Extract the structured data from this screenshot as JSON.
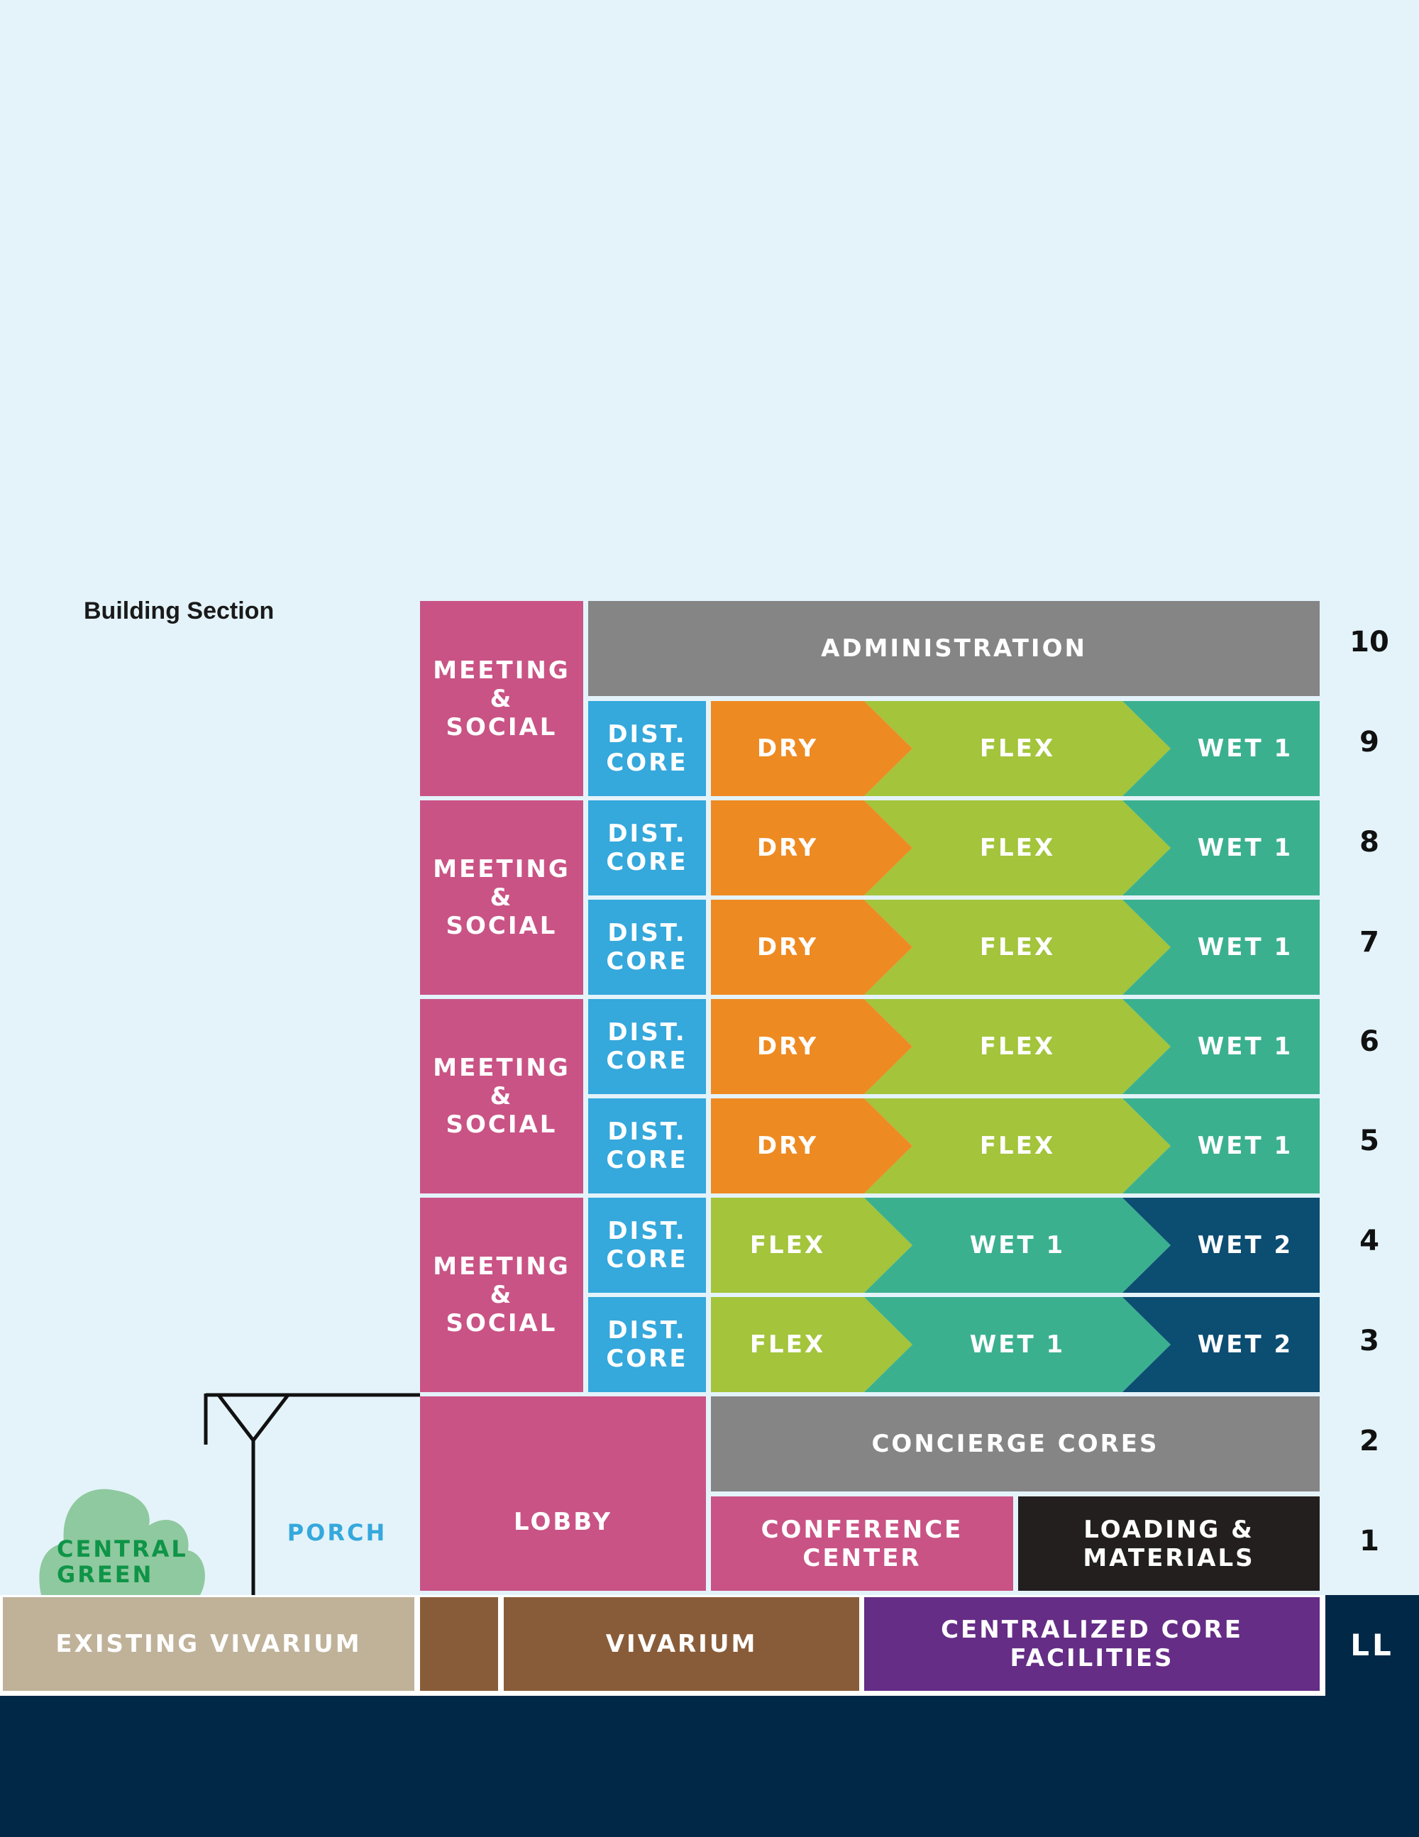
{
  "title": "Building Section",
  "colors": {
    "sky": "#e4f3fa",
    "meeting": "#c95385",
    "admin": "#858585",
    "core": "#35a8dc",
    "dry": "#ee8a22",
    "flex": "#a3c43b",
    "wet1": "#3bb08f",
    "wet2": "#0c4d72",
    "loading": "#231f1e",
    "existing_vivarium": "#bfb299",
    "vivarium": "#895c39",
    "core_facilities": "#652d86",
    "ground": "#022847",
    "green": "#8fc99f",
    "green_text": "#0f9448",
    "porch_text": "#35a8dc"
  },
  "labels": {
    "meeting": "MEETING\n&\nSOCIAL",
    "administration": "ADMINISTRATION",
    "dist_core": "DIST.\nCORE",
    "dry": "DRY",
    "flex": "FLEX",
    "wet1": "WET 1",
    "wet2": "WET 2",
    "concierge": "CONCIERGE CORES",
    "lobby": "LOBBY",
    "conference": "CONFERENCE\nCENTER",
    "loading": "LOADING &\nMATERIALS",
    "existing_vivarium": "EXISTING VIVARIUM",
    "vivarium": "VIVARIUM",
    "core_facilities": "CENTRALIZED CORE\nFACILITIES",
    "central_green": "CENTRAL\nGREEN",
    "porch": "PORCH",
    "ll": "LL"
  },
  "levels": [
    "10",
    "9",
    "8",
    "7",
    "6",
    "5",
    "4",
    "3",
    "2",
    "1"
  ],
  "lab_floors": [
    {
      "level": "9",
      "zones": [
        "DRY",
        "FLEX",
        "WET 1"
      ]
    },
    {
      "level": "8",
      "zones": [
        "DRY",
        "FLEX",
        "WET 1"
      ]
    },
    {
      "level": "7",
      "zones": [
        "DRY",
        "FLEX",
        "WET 1"
      ]
    },
    {
      "level": "6",
      "zones": [
        "DRY",
        "FLEX",
        "WET 1"
      ]
    },
    {
      "level": "5",
      "zones": [
        "DRY",
        "FLEX",
        "WET 1"
      ]
    },
    {
      "level": "4",
      "zones": [
        "FLEX",
        "WET 1",
        "WET 2"
      ]
    },
    {
      "level": "3",
      "zones": [
        "FLEX",
        "WET 1",
        "WET 2"
      ]
    }
  ]
}
